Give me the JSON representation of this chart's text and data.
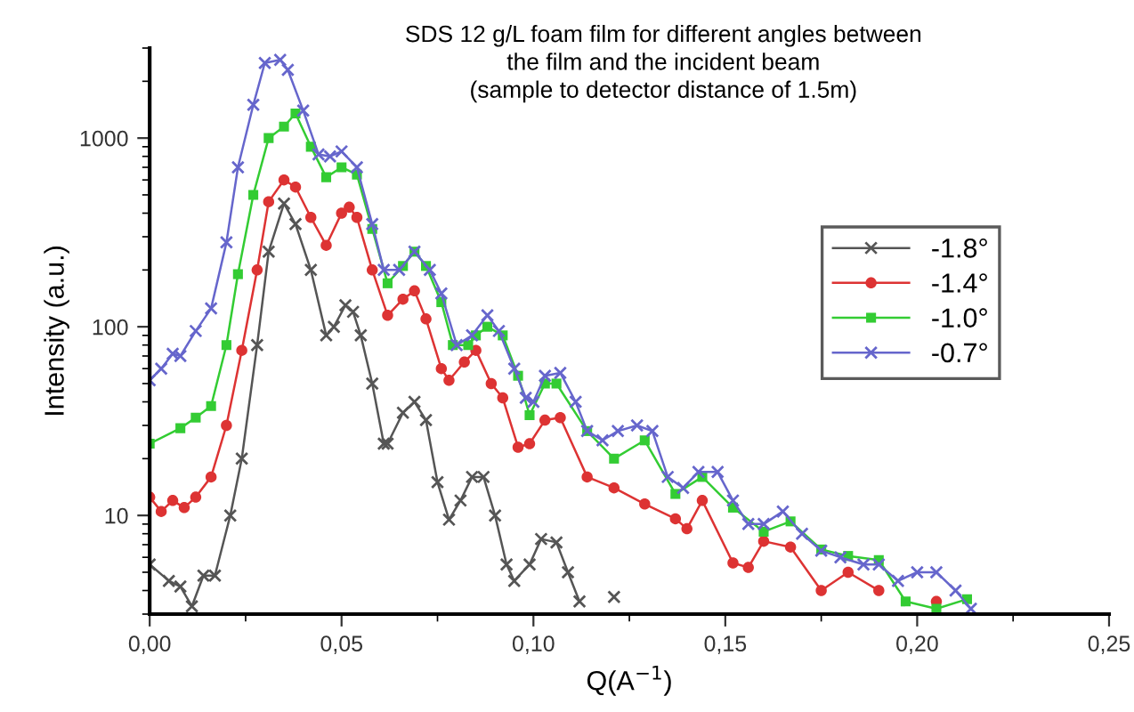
{
  "chart_data": {
    "type": "line",
    "title": "SDS 12 g/L foam film for different angles between\nthe film and the incident beam\n(sample to detector distance of 1.5m)",
    "xlabel": "Q(A$^{−1}$)",
    "ylabel": "Intensity (a.u.)",
    "log": "y",
    "xlim": [
      0,
      0.25
    ],
    "ylim": [
      3,
      3000
    ],
    "xticks": [
      {
        "value": 0,
        "label": "0,00"
      },
      {
        "value": 0.05,
        "label": "0,05"
      },
      {
        "value": 0.1,
        "label": "0,10"
      },
      {
        "value": 0.15,
        "label": "0,15"
      },
      {
        "value": 0.2,
        "label": "0,20"
      },
      {
        "value": 0.25,
        "label": "0,25"
      }
    ],
    "yticks": [
      10,
      100,
      1000
    ],
    "grid": false,
    "legend": "right",
    "series": [
      {
        "name": "-1.8°",
        "color": "#555555",
        "marker": "cross",
        "x": [
          0,
          0.005,
          0.008,
          0.011,
          0.014,
          0.017,
          0.021,
          0.024,
          0.028,
          0.031,
          0.035,
          0.038,
          0.042,
          0.046,
          0.048,
          0.051,
          0.053,
          0.055,
          0.058,
          0.061,
          0.062,
          0.066,
          0.069,
          0.072,
          0.075,
          0.078,
          0.081,
          0.084,
          0.087,
          0.09,
          0.093,
          0.095,
          0.099,
          0.102,
          0.106,
          0.109,
          0.112,
          0.114,
          0.118,
          0.121
        ],
        "values": [
          5.5,
          4.5,
          4.2,
          3.3,
          4.8,
          4.8,
          10,
          20,
          80,
          250,
          450,
          350,
          200,
          90,
          100,
          130,
          120,
          90,
          50,
          24,
          24,
          35,
          40,
          32,
          15,
          9.5,
          12,
          16,
          16,
          10,
          5.5,
          4.5,
          5.5,
          7.5,
          7.2,
          5,
          3.5,
          null,
          null,
          3.7
        ]
      },
      {
        "name": "-1.4°",
        "color": "#dd3333",
        "marker": "circle",
        "x": [
          0,
          0.003,
          0.006,
          0.009,
          0.012,
          0.016,
          0.02,
          0.024,
          0.028,
          0.031,
          0.035,
          0.038,
          0.042,
          0.046,
          0.05,
          0.052,
          0.054,
          0.058,
          0.062,
          0.066,
          0.069,
          0.072,
          0.076,
          0.078,
          0.082,
          0.085,
          0.089,
          0.092,
          0.096,
          0.099,
          0.103,
          0.107,
          0.114,
          0.121,
          0.129,
          0.137,
          0.14,
          0.144,
          0.152,
          0.156,
          0.16,
          0.167,
          0.175,
          0.182,
          0.19,
          0.195,
          0.205
        ],
        "values": [
          12.5,
          10.5,
          12,
          11,
          12.5,
          16,
          30,
          75,
          200,
          460,
          600,
          550,
          380,
          270,
          400,
          430,
          380,
          200,
          115,
          140,
          155,
          110,
          60,
          52,
          65,
          75,
          50,
          42,
          23,
          24,
          32,
          33,
          16,
          14,
          11.5,
          9.6,
          8.5,
          12,
          5.6,
          5.3,
          7.3,
          6.8,
          4,
          5,
          4,
          null,
          3.5
        ]
      },
      {
        "name": "-1.0°",
        "color": "#33cc33",
        "marker": "square",
        "x": [
          0,
          0.008,
          0.012,
          0.016,
          0.02,
          0.023,
          0.027,
          0.031,
          0.035,
          0.038,
          0.042,
          0.046,
          0.05,
          0.054,
          0.058,
          0.062,
          0.066,
          0.069,
          0.072,
          0.076,
          0.079,
          0.083,
          0.085,
          0.088,
          0.092,
          0.096,
          0.099,
          0.103,
          0.106,
          0.114,
          0.121,
          0.129,
          0.137,
          0.144,
          0.152,
          0.16,
          0.167,
          0.175,
          0.182,
          0.19,
          0.197,
          0.205,
          0.213
        ],
        "values": [
          24,
          29,
          33,
          38,
          80,
          190,
          500,
          1000,
          1150,
          1350,
          900,
          620,
          700,
          640,
          330,
          170,
          210,
          250,
          210,
          135,
          80,
          80,
          90,
          100,
          90,
          55,
          34,
          50,
          50,
          28,
          20,
          25,
          13,
          16,
          11,
          8.2,
          9.3,
          6.6,
          6.1,
          5.8,
          3.5,
          3.2,
          3.6
        ]
      },
      {
        "name": "-0.7°",
        "color": "#6666cc",
        "marker": "cross",
        "x": [
          0,
          0.003,
          0.006,
          0.008,
          0.012,
          0.016,
          0.02,
          0.023,
          0.027,
          0.03,
          0.034,
          0.036,
          0.04,
          0.044,
          0.047,
          0.05,
          0.054,
          0.058,
          0.061,
          0.065,
          0.069,
          0.073,
          0.076,
          0.08,
          0.084,
          0.088,
          0.091,
          0.095,
          0.098,
          0.1,
          0.103,
          0.107,
          0.111,
          0.114,
          0.118,
          0.122,
          0.127,
          0.131,
          0.135,
          0.139,
          0.143,
          0.148,
          0.152,
          0.156,
          0.16,
          0.165,
          0.17,
          0.175,
          0.18,
          0.186,
          0.19,
          0.195,
          0.2,
          0.205,
          0.21,
          0.214
        ],
        "values": [
          52,
          60,
          72,
          70,
          95,
          125,
          280,
          700,
          1500,
          2500,
          2600,
          2300,
          1400,
          820,
          800,
          850,
          700,
          350,
          200,
          200,
          250,
          200,
          150,
          80,
          90,
          115,
          95,
          60,
          42,
          40,
          55,
          57,
          40,
          28,
          25,
          28,
          30,
          28,
          16,
          14,
          17,
          17,
          12,
          9,
          9,
          10.5,
          8,
          6.5,
          6,
          5.5,
          5.5,
          4.5,
          5,
          5,
          4,
          3.2
        ]
      }
    ]
  }
}
